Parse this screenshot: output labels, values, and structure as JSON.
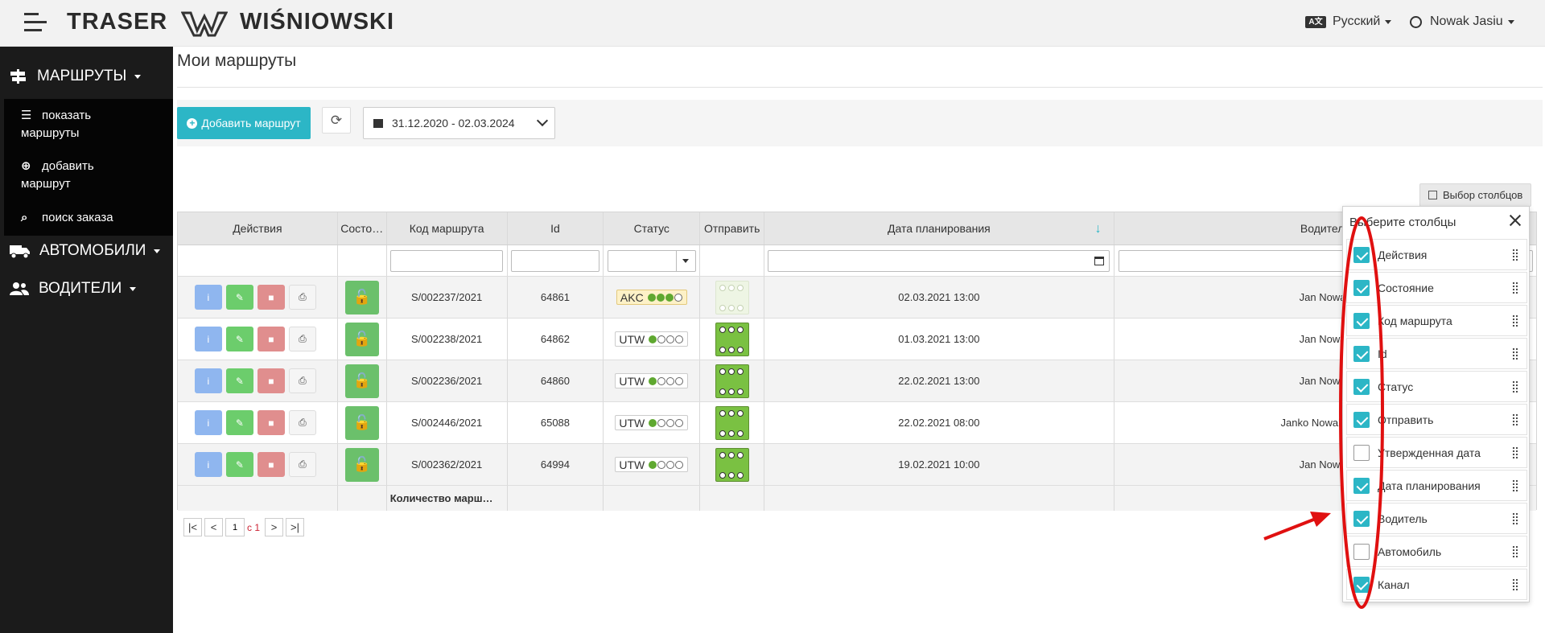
{
  "header": {
    "brand": "TRASER",
    "logo_text": "WIŚNIOWSKI",
    "language": "Русский",
    "user": "Nowak Jasiu",
    "lang_badge": "A文"
  },
  "sidebar": {
    "routes_label": "МАРШРУТЫ",
    "routes_items": [
      {
        "icon": "list-icon",
        "label_line1": "показать",
        "label_line2": "маршруты"
      },
      {
        "icon": "plus-circle-icon",
        "label_line1": "добавить",
        "label_line2": "маршрут"
      },
      {
        "icon": "search-icon",
        "label_line1": "поиск заказа",
        "label_line2": ""
      }
    ],
    "cars_label": "АВТОМОБИЛИ",
    "drivers_label": "ВОДИТЕЛИ"
  },
  "page": {
    "title": "Мои маршруты"
  },
  "toolbar": {
    "add_label": "Добавить маршрут",
    "date_range": "31.12.2020 - 02.03.2024"
  },
  "column_chooser_button": "Выбор столбцов",
  "grid": {
    "headers": [
      "Действия",
      "Состо…",
      "Код маршрута",
      "Id",
      "Статус",
      "Отправить",
      "Дата планирования",
      "Водитель"
    ],
    "rows": [
      {
        "code": "S/002237/2021",
        "id": "64861",
        "status": "AKC",
        "status_dots": 3,
        "send_faded": true,
        "date": "02.03.2021 13:00",
        "driver": "Jan Nowak"
      },
      {
        "code": "S/002238/2021",
        "id": "64862",
        "status": "UTW",
        "status_dots": 1,
        "send_faded": false,
        "date": "01.03.2021 13:00",
        "driver": "Jan Nowak"
      },
      {
        "code": "S/002236/2021",
        "id": "64860",
        "status": "UTW",
        "status_dots": 1,
        "send_faded": false,
        "date": "22.02.2021 13:00",
        "driver": "Jan Nowak"
      },
      {
        "code": "S/002446/2021",
        "id": "65088",
        "status": "UTW",
        "status_dots": 1,
        "send_faded": false,
        "date": "22.02.2021 08:00",
        "driver": "Janko Nowakowski"
      },
      {
        "code": "S/002362/2021",
        "id": "64994",
        "status": "UTW",
        "status_dots": 1,
        "send_faded": false,
        "date": "19.02.2021 10:00",
        "driver": "Jan Nowak"
      }
    ],
    "summary": "Количество марш…"
  },
  "pager": {
    "page": "1",
    "of_label": "с 1"
  },
  "chooser": {
    "title": "Выберите столбцы",
    "items": [
      {
        "label": "Действия",
        "checked": true
      },
      {
        "label": "Состояние",
        "checked": true
      },
      {
        "label": "Код маршрута",
        "checked": true
      },
      {
        "label": "Id",
        "checked": true
      },
      {
        "label": "Статус",
        "checked": true
      },
      {
        "label": "Отправить",
        "checked": true
      },
      {
        "label": "Утвержденная дата",
        "checked": false
      },
      {
        "label": "Дата планирования",
        "checked": true
      },
      {
        "label": "Водитель",
        "checked": true
      },
      {
        "label": "Автомобиль",
        "checked": false
      },
      {
        "label": "Канал",
        "checked": true
      }
    ]
  },
  "colors": {
    "accent": "#2cb6c6",
    "sidebar": "#1b1b1b",
    "annotation": "#e01010"
  }
}
